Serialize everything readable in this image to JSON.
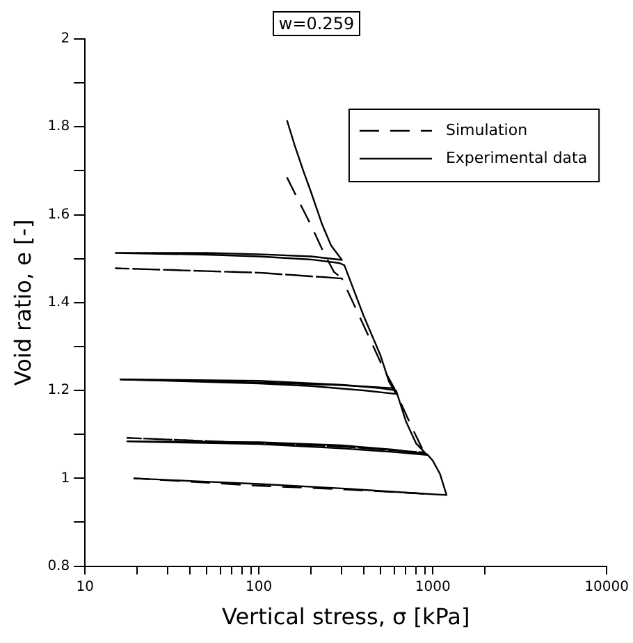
{
  "chart_data": {
    "type": "line",
    "title": "w=0.259",
    "xlabel": "Vertical stress, σ [kPa]",
    "ylabel": "Void ratio, e [-]",
    "log": "x",
    "grid": false,
    "legend": "top right",
    "marker": "none",
    "xlim": [
      10,
      10000
    ],
    "ylim": [
      0.8,
      2
    ],
    "xticks": [
      10,
      {
        "value": 20,
        "label": null
      },
      {
        "value": 30,
        "label": null
      },
      {
        "value": 40,
        "label": null
      },
      {
        "value": 50,
        "label": null
      },
      {
        "value": 60,
        "label": null
      },
      {
        "value": 70,
        "label": null
      },
      {
        "value": 80,
        "label": null
      },
      {
        "value": 90,
        "label": null
      },
      100,
      {
        "value": 200,
        "label": null
      },
      {
        "value": 300,
        "label": null
      },
      {
        "value": 400,
        "label": null
      },
      {
        "value": 500,
        "label": null
      },
      {
        "value": 600,
        "label": null
      },
      {
        "value": 700,
        "label": null
      },
      {
        "value": 800,
        "label": null
      },
      {
        "value": 900,
        "label": null
      },
      1000,
      {
        "value": 2000,
        "label": null
      },
      10000
    ],
    "yticks": [
      0.8,
      {
        "value": 0.9,
        "label": null
      },
      1,
      {
        "value": 1.1,
        "label": null
      },
      1.2,
      {
        "value": 1.3,
        "label": null
      },
      1.4,
      {
        "value": 1.5,
        "label": null
      },
      1.6,
      {
        "value": 1.7,
        "label": null
      },
      1.8,
      {
        "value": 1.9,
        "label": null
      },
      2
    ],
    "series": [
      {
        "name": "Simulation",
        "color": "#000000",
        "line_style": "dashed",
        "x": [
          145,
          170,
          200,
          235,
          270,
          300,
          100,
          15,
          100,
          300,
          420,
          520,
          600,
          300,
          100,
          16,
          100,
          300,
          600,
          750,
          890,
          300,
          100,
          17.5,
          100,
          300,
          890,
          null,
          890,
          300,
          100,
          19
        ],
        "values": [
          1.685,
          1.63,
          1.575,
          1.515,
          1.47,
          1.455,
          1.468,
          1.478,
          1.468,
          1.455,
          1.33,
          1.25,
          1.205,
          1.212,
          1.218,
          1.225,
          1.218,
          1.212,
          1.205,
          1.12,
          1.059,
          1.072,
          1.08,
          1.092,
          1.08,
          1.072,
          1.059,
          null,
          0.965,
          0.975,
          0.983,
          1.0
        ]
      },
      {
        "name": "Experimental data",
        "color": "#000000",
        "line_style": "solid",
        "x": [
          145,
          160,
          180,
          200,
          230,
          260,
          300,
          200,
          100,
          50,
          15,
          50,
          100,
          200,
          290,
          310,
          400,
          500,
          560,
          615,
          400,
          200,
          100,
          16,
          100,
          300,
          500,
          615,
          700,
          800,
          927,
          600,
          300,
          100,
          17.5,
          100,
          300,
          600,
          927,
          1000,
          1100,
          1200,
          800,
          300,
          100,
          40,
          19
        ],
        "values": [
          1.815,
          1.76,
          1.7,
          1.65,
          1.58,
          1.53,
          1.497,
          1.505,
          1.51,
          1.513,
          1.513,
          1.509,
          1.505,
          1.498,
          1.49,
          1.485,
          1.37,
          1.28,
          1.22,
          1.192,
          1.2,
          1.21,
          1.216,
          1.225,
          1.222,
          1.213,
          1.205,
          1.2,
          1.13,
          1.08,
          1.053,
          1.06,
          1.068,
          1.078,
          1.084,
          1.082,
          1.075,
          1.065,
          1.055,
          1.04,
          1.01,
          0.962,
          0.966,
          0.977,
          0.987,
          0.994,
          1.0
        ]
      }
    ]
  }
}
